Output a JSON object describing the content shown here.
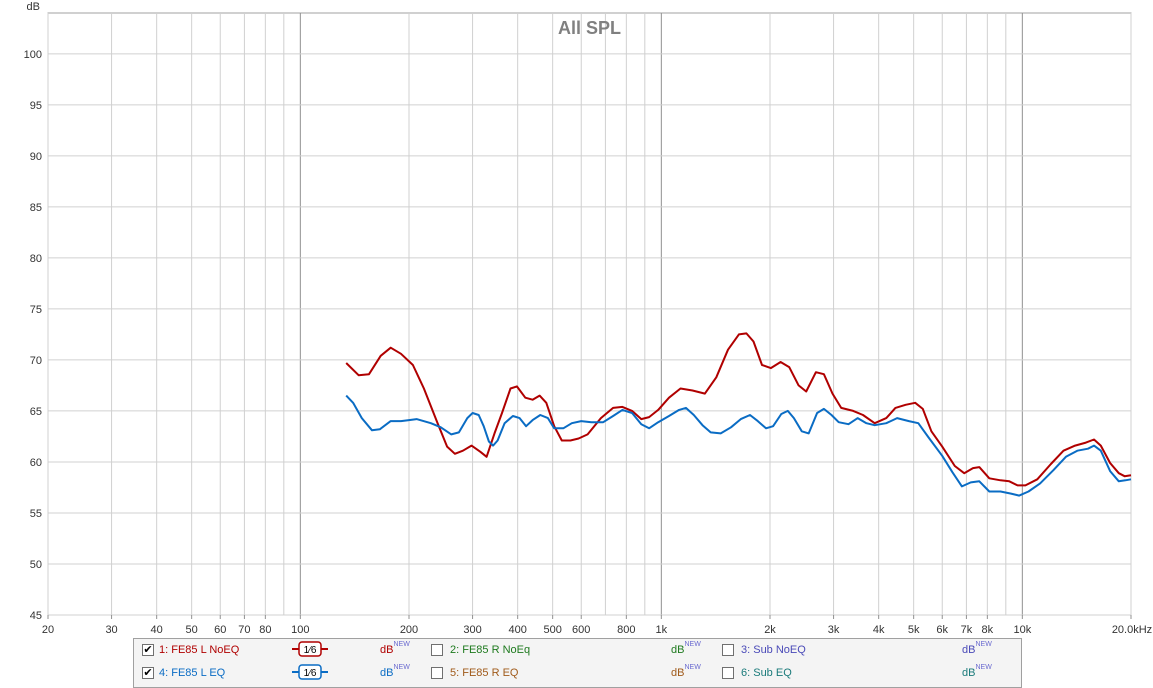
{
  "chart_data": {
    "type": "line",
    "title": "All SPL",
    "ylabel": "dB",
    "xlabel": "",
    "x_scale": "log",
    "xlim": [
      20,
      20000
    ],
    "ylim": [
      45,
      104
    ],
    "grid": true,
    "yticks": [
      45,
      50,
      55,
      60,
      65,
      70,
      75,
      80,
      85,
      90,
      95,
      100
    ],
    "xticks": [
      {
        "v": 20,
        "label": "20"
      },
      {
        "v": 30,
        "label": "30"
      },
      {
        "v": 40,
        "label": "40"
      },
      {
        "v": 50,
        "label": "50"
      },
      {
        "v": 60,
        "label": "60"
      },
      {
        "v": 70,
        "label": "70"
      },
      {
        "v": 80,
        "label": "80"
      },
      {
        "v": 100,
        "label": "100"
      },
      {
        "v": 200,
        "label": "200"
      },
      {
        "v": 300,
        "label": "300"
      },
      {
        "v": 400,
        "label": "400"
      },
      {
        "v": 500,
        "label": "500"
      },
      {
        "v": 600,
        "label": "600"
      },
      {
        "v": 800,
        "label": "800"
      },
      {
        "v": 1000,
        "label": "1k"
      },
      {
        "v": 2000,
        "label": "2k"
      },
      {
        "v": 3000,
        "label": "3k"
      },
      {
        "v": 4000,
        "label": "4k"
      },
      {
        "v": 5000,
        "label": "5k"
      },
      {
        "v": 6000,
        "label": "6k"
      },
      {
        "v": 7000,
        "label": "7k"
      },
      {
        "v": 8000,
        "label": "8k"
      },
      {
        "v": 10000,
        "label": "10k"
      },
      {
        "v": 20000,
        "label": "20.0kHz"
      }
    ],
    "series": [
      {
        "name": "1: FE85 L NoEQ",
        "color": "#b00000",
        "points": [
          [
            134,
            69.7
          ],
          [
            145,
            68.5
          ],
          [
            155,
            68.6
          ],
          [
            167,
            70.4
          ],
          [
            178,
            71.2
          ],
          [
            190,
            70.6
          ],
          [
            205,
            69.5
          ],
          [
            220,
            67.2
          ],
          [
            240,
            63.8
          ],
          [
            255,
            61.5
          ],
          [
            268,
            60.8
          ],
          [
            282,
            61.1
          ],
          [
            298,
            61.6
          ],
          [
            315,
            61.0
          ],
          [
            328,
            60.5
          ],
          [
            345,
            62.8
          ],
          [
            362,
            64.8
          ],
          [
            382,
            67.2
          ],
          [
            398,
            67.4
          ],
          [
            420,
            66.3
          ],
          [
            440,
            66.1
          ],
          [
            460,
            66.5
          ],
          [
            480,
            65.8
          ],
          [
            505,
            63.5
          ],
          [
            530,
            62.1
          ],
          [
            560,
            62.1
          ],
          [
            590,
            62.3
          ],
          [
            625,
            62.7
          ],
          [
            680,
            64.3
          ],
          [
            735,
            65.3
          ],
          [
            780,
            65.4
          ],
          [
            830,
            65.0
          ],
          [
            880,
            64.2
          ],
          [
            925,
            64.4
          ],
          [
            980,
            65.1
          ],
          [
            1050,
            66.3
          ],
          [
            1130,
            67.2
          ],
          [
            1220,
            67.0
          ],
          [
            1320,
            66.7
          ],
          [
            1420,
            68.3
          ],
          [
            1530,
            71.0
          ],
          [
            1640,
            72.5
          ],
          [
            1720,
            72.6
          ],
          [
            1800,
            71.8
          ],
          [
            1900,
            69.5
          ],
          [
            2010,
            69.2
          ],
          [
            2140,
            69.8
          ],
          [
            2260,
            69.3
          ],
          [
            2400,
            67.5
          ],
          [
            2520,
            66.9
          ],
          [
            2680,
            68.8
          ],
          [
            2820,
            68.6
          ],
          [
            2980,
            66.7
          ],
          [
            3150,
            65.3
          ],
          [
            3400,
            65.0
          ],
          [
            3620,
            64.6
          ],
          [
            3900,
            63.8
          ],
          [
            4200,
            64.3
          ],
          [
            4450,
            65.3
          ],
          [
            4750,
            65.6
          ],
          [
            5050,
            65.8
          ],
          [
            5300,
            65.2
          ],
          [
            5600,
            63.0
          ],
          [
            6000,
            61.5
          ],
          [
            6500,
            59.6
          ],
          [
            6900,
            58.9
          ],
          [
            7300,
            59.4
          ],
          [
            7600,
            59.5
          ],
          [
            8100,
            58.4
          ],
          [
            8700,
            58.2
          ],
          [
            9200,
            58.1
          ],
          [
            9700,
            57.7
          ],
          [
            10200,
            57.7
          ],
          [
            11000,
            58.3
          ],
          [
            12000,
            59.8
          ],
          [
            13000,
            61.1
          ],
          [
            14000,
            61.6
          ],
          [
            15000,
            61.9
          ],
          [
            15800,
            62.2
          ],
          [
            16500,
            61.6
          ],
          [
            17500,
            59.9
          ],
          [
            18500,
            58.9
          ],
          [
            19200,
            58.6
          ],
          [
            20000,
            58.7
          ]
        ]
      },
      {
        "name": "4: FE85 L EQ",
        "color": "#0a6cc4",
        "points": [
          [
            134,
            66.5
          ],
          [
            140,
            65.8
          ],
          [
            148,
            64.3
          ],
          [
            158,
            63.1
          ],
          [
            166,
            63.2
          ],
          [
            178,
            64.0
          ],
          [
            190,
            64.0
          ],
          [
            200,
            64.1
          ],
          [
            210,
            64.2
          ],
          [
            230,
            63.8
          ],
          [
            245,
            63.4
          ],
          [
            262,
            62.7
          ],
          [
            275,
            62.9
          ],
          [
            290,
            64.3
          ],
          [
            300,
            64.8
          ],
          [
            312,
            64.6
          ],
          [
            322,
            63.5
          ],
          [
            333,
            62.0
          ],
          [
            342,
            61.6
          ],
          [
            352,
            62.1
          ],
          [
            368,
            63.8
          ],
          [
            388,
            64.5
          ],
          [
            405,
            64.3
          ],
          [
            422,
            63.5
          ],
          [
            440,
            64.1
          ],
          [
            462,
            64.6
          ],
          [
            485,
            64.3
          ],
          [
            505,
            63.3
          ],
          [
            535,
            63.3
          ],
          [
            565,
            63.8
          ],
          [
            600,
            64.0
          ],
          [
            640,
            63.9
          ],
          [
            690,
            63.9
          ],
          [
            735,
            64.5
          ],
          [
            780,
            65.1
          ],
          [
            830,
            64.8
          ],
          [
            880,
            63.7
          ],
          [
            925,
            63.3
          ],
          [
            980,
            63.9
          ],
          [
            1050,
            64.5
          ],
          [
            1120,
            65.1
          ],
          [
            1170,
            65.3
          ],
          [
            1230,
            64.6
          ],
          [
            1300,
            63.6
          ],
          [
            1370,
            62.9
          ],
          [
            1460,
            62.8
          ],
          [
            1560,
            63.4
          ],
          [
            1660,
            64.2
          ],
          [
            1760,
            64.6
          ],
          [
            1850,
            64.0
          ],
          [
            1950,
            63.3
          ],
          [
            2040,
            63.5
          ],
          [
            2150,
            64.7
          ],
          [
            2240,
            65.0
          ],
          [
            2330,
            64.3
          ],
          [
            2450,
            63.0
          ],
          [
            2560,
            62.8
          ],
          [
            2700,
            64.8
          ],
          [
            2820,
            65.2
          ],
          [
            2960,
            64.6
          ],
          [
            3100,
            63.9
          ],
          [
            3300,
            63.7
          ],
          [
            3500,
            64.3
          ],
          [
            3700,
            63.8
          ],
          [
            3900,
            63.6
          ],
          [
            4200,
            63.8
          ],
          [
            4500,
            64.3
          ],
          [
            4850,
            64.0
          ],
          [
            5150,
            63.8
          ],
          [
            5500,
            62.4
          ],
          [
            6000,
            60.6
          ],
          [
            6400,
            59.0
          ],
          [
            6800,
            57.6
          ],
          [
            7200,
            58.0
          ],
          [
            7600,
            58.1
          ],
          [
            8100,
            57.1
          ],
          [
            8700,
            57.1
          ],
          [
            9300,
            56.9
          ],
          [
            9800,
            56.7
          ],
          [
            10400,
            57.1
          ],
          [
            11200,
            57.9
          ],
          [
            12200,
            59.2
          ],
          [
            13200,
            60.5
          ],
          [
            14200,
            61.1
          ],
          [
            15200,
            61.3
          ],
          [
            15800,
            61.6
          ],
          [
            16500,
            61.1
          ],
          [
            17500,
            59.1
          ],
          [
            18500,
            58.1
          ],
          [
            19300,
            58.2
          ],
          [
            20000,
            58.3
          ]
        ]
      }
    ]
  },
  "legend": {
    "smoothing_label": "1/6",
    "db_label": "dB",
    "new_label": "NEW",
    "items": [
      {
        "name": "1: FE85 L NoEQ",
        "checked": true,
        "color": "#b00000",
        "show_smoothing": true
      },
      {
        "name": "2: FE85 R NoEq",
        "checked": false,
        "color": "#1e7a1e",
        "show_smoothing": false
      },
      {
        "name": "3: Sub NoEQ",
        "checked": false,
        "color": "#4a4ab8",
        "show_smoothing": false
      },
      {
        "name": "4: FE85 L EQ",
        "checked": true,
        "color": "#0a6cc4",
        "show_smoothing": true
      },
      {
        "name": "5: FE85 R EQ",
        "checked": false,
        "color": "#a05a1a",
        "show_smoothing": false
      },
      {
        "name": "6: Sub EQ",
        "checked": false,
        "color": "#1a7a7a",
        "show_smoothing": false
      }
    ]
  }
}
